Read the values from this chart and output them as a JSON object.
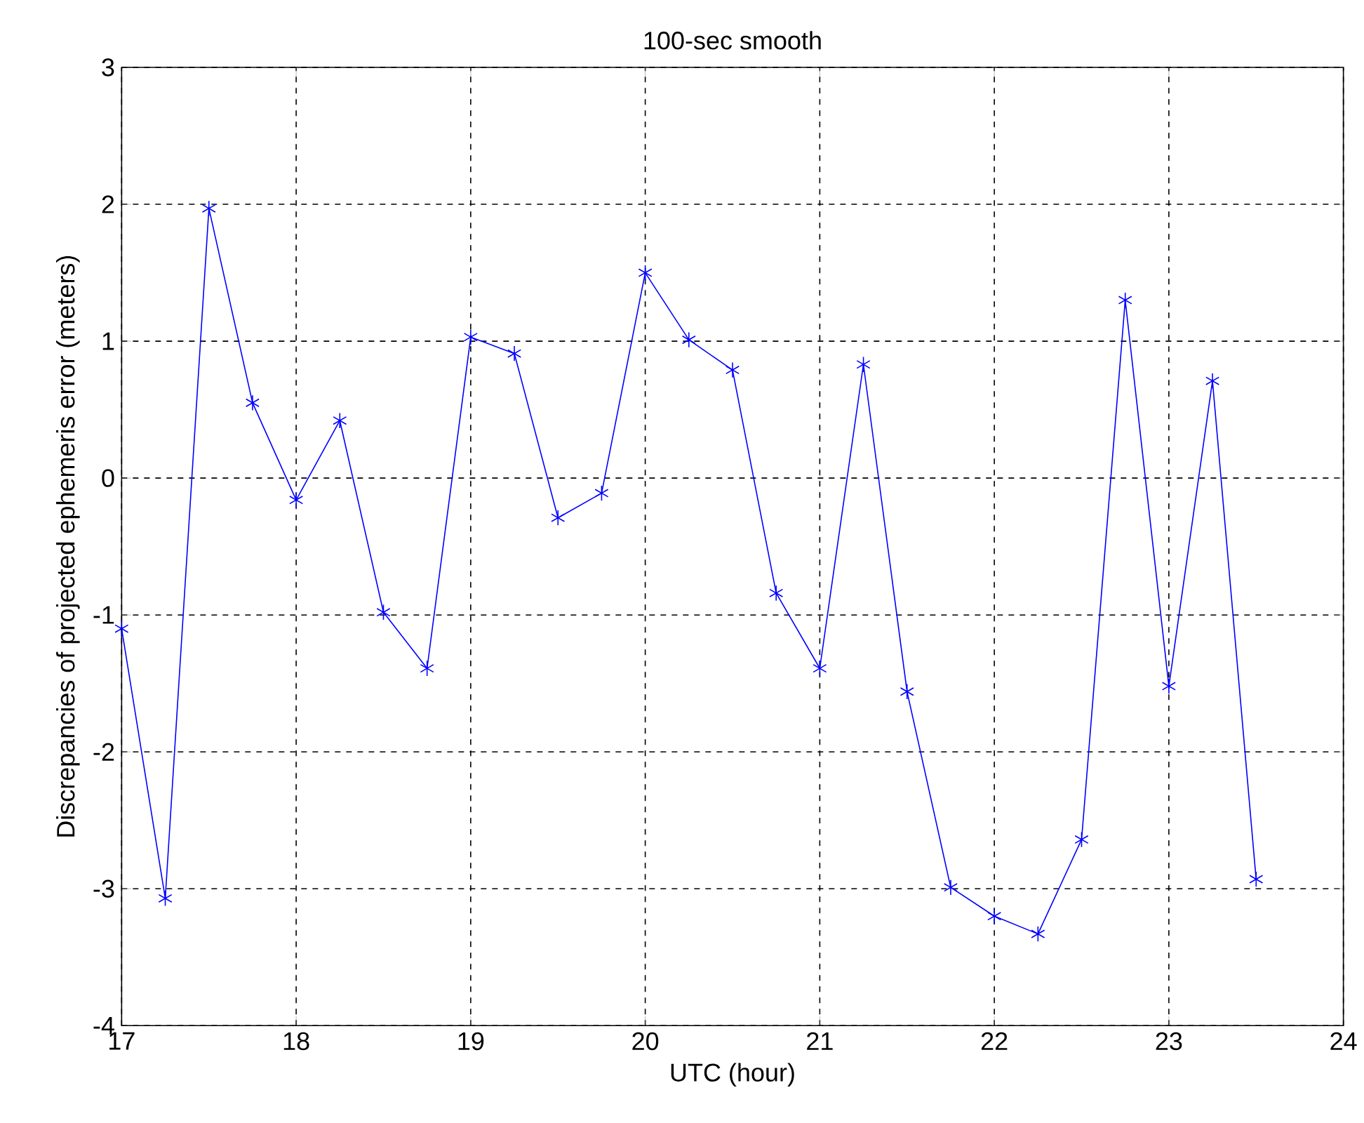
{
  "chart_data": {
    "type": "line",
    "title": "100-sec smooth",
    "xlabel": "UTC (hour)",
    "ylabel": "Discrepancies of projected ephemeris error (meters)",
    "x": [
      17.0,
      17.25,
      17.5,
      17.75,
      18.0,
      18.25,
      18.5,
      18.75,
      19.0,
      19.25,
      19.5,
      19.75,
      20.0,
      20.25,
      20.5,
      20.75,
      21.0,
      21.25,
      21.5,
      21.75,
      22.0,
      22.25,
      22.5,
      22.75,
      23.0,
      23.25,
      23.5
    ],
    "series": [
      {
        "color": "#0000ff",
        "values": [
          -1.1,
          -3.07,
          1.97,
          0.55,
          -0.16,
          0.42,
          -0.98,
          -1.39,
          1.03,
          0.91,
          -0.29,
          -0.11,
          1.5,
          1.01,
          0.79,
          -0.84,
          -1.39,
          0.83,
          -1.56,
          -2.99,
          -3.2,
          -3.33,
          -2.64,
          1.3,
          -1.52,
          0.71,
          -2.93
        ]
      }
    ],
    "xlim": [
      17,
      24
    ],
    "ylim": [
      -4,
      3
    ],
    "xticks": [
      17,
      18,
      19,
      20,
      21,
      22,
      23,
      24
    ],
    "yticks": [
      -4,
      -3,
      -2,
      -1,
      0,
      1,
      2,
      3
    ],
    "grid": true,
    "marker": "cross",
    "line_style": "solid"
  }
}
